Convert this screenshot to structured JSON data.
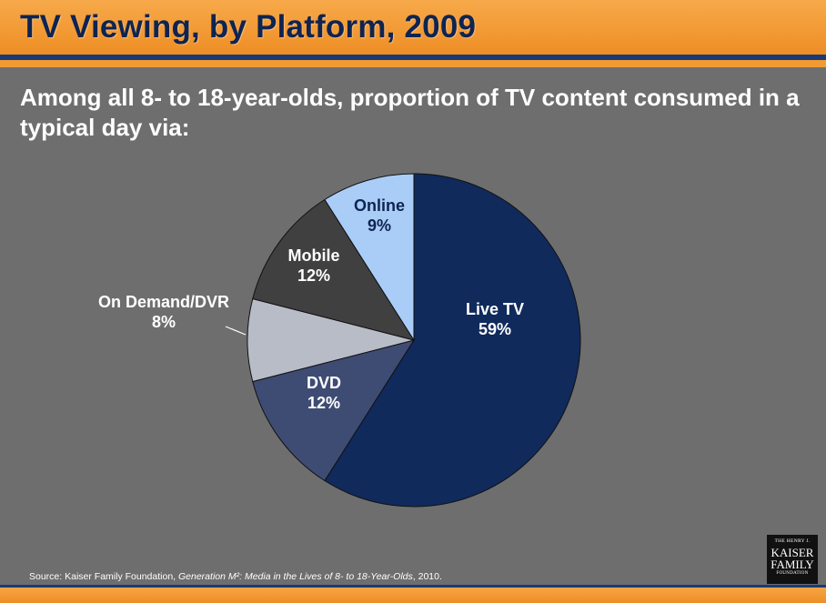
{
  "header": {
    "title": "TV Viewing, by Platform, 2009"
  },
  "colors": {
    "background": "#6e6e6e",
    "header_orange": "#f29a33",
    "header_blue": "#1b3a78"
  },
  "chart_data": {
    "type": "pie",
    "title": "Among all 8- to 18-year-olds, proportion of TV content consumed in a typical day via:",
    "slices": [
      {
        "label": "Live TV",
        "value": 59,
        "value_label": "59%",
        "color": "#102a5c",
        "text_color": "#ffffff"
      },
      {
        "label": "DVD",
        "value": 12,
        "value_label": "12%",
        "color": "#3e4c74",
        "text_color": "#ffffff"
      },
      {
        "label": "On Demand/DVR",
        "value": 8,
        "value_label": "8%",
        "color": "#b8bcc6",
        "text_color": "#ffffff"
      },
      {
        "label": "Mobile",
        "value": 12,
        "value_label": "12%",
        "color": "#404040",
        "text_color": "#ffffff"
      },
      {
        "label": "Online",
        "value": 9,
        "value_label": "9%",
        "color": "#a9cdf7",
        "text_color": "#0f2450"
      }
    ]
  },
  "source": {
    "prefix": "Source: Kaiser Family Foundation, ",
    "publication": "Generation M²: Media in the Lives of 8- to 18-Year-Olds",
    "suffix": ", 2010."
  },
  "logo": {
    "line1": "THE HENRY J.",
    "line2": "KAISER",
    "line3": "FAMILY",
    "line4": "FOUNDATION"
  }
}
